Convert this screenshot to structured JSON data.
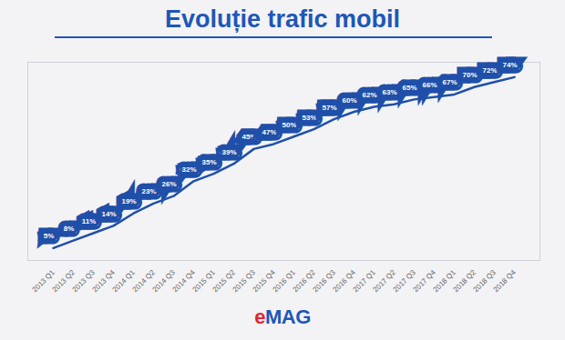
{
  "chart_data": {
    "type": "line",
    "title": "Evoluție trafic mobil",
    "categories": [
      "2013 Q1",
      "2013 Q2",
      "2013 Q3",
      "2013 Q4",
      "2014 Q1",
      "2014 Q2",
      "2014 Q3",
      "2014 Q4",
      "2015 Q1",
      "2015 Q2",
      "2015 Q3",
      "2015 Q4",
      "2016 Q1",
      "2016 Q2",
      "2016 Q3",
      "2016 Q4",
      "2017 Q1",
      "2017 Q2",
      "2017 Q3",
      "2017 Q4",
      "2018 Q1",
      "2018 Q2",
      "2018 Q3",
      "2018 Q4"
    ],
    "values": [
      5,
      8,
      11,
      14,
      19,
      23,
      26,
      32,
      35,
      39,
      45,
      47,
      50,
      53,
      57,
      60,
      62,
      63,
      65,
      66,
      67,
      70,
      72,
      74
    ],
    "value_labels": [
      "5%",
      "8%",
      "11%",
      "14%",
      "19%",
      "23%",
      "26%",
      "32%",
      "35%",
      "39%",
      "45%",
      "47%",
      "50%",
      "53%",
      "57%",
      "60%",
      "62%",
      "63%",
      "65%",
      "66%",
      "67%",
      "70%",
      "72%",
      "74%"
    ],
    "data_labels": true,
    "color": "#1f4fa8",
    "ylim": [
      0,
      80
    ],
    "tick_labels": "x",
    "grid": false,
    "annotations": [
      "eMAG"
    ]
  }
}
